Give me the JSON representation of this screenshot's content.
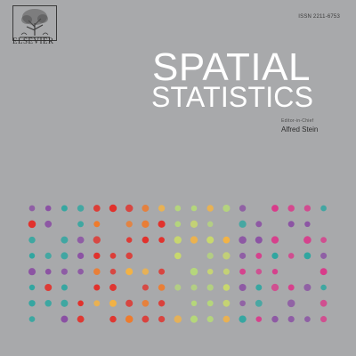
{
  "cover": {
    "publisher": "ELSEVIER",
    "issn": "ISSN 2211-6753",
    "title_line1": "SPATIAL",
    "title_line2": "STATISTICS",
    "editor_role": "Editor-in-Chief",
    "editor_name": "Alfred Stein"
  },
  "icons": {
    "logo": "elsevier-tree-logo"
  },
  "colors": {
    "background": "#a8a9ab",
    "title": "#ffffff",
    "dot_palette": [
      "#e2302a",
      "#f07a2a",
      "#f5b342",
      "#b5d77a",
      "#2fa6a0",
      "#8a4fa3",
      "#d93a8a",
      "#c9d96b"
    ]
  }
}
